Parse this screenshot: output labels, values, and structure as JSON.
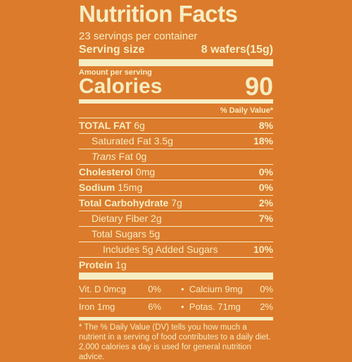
{
  "title": "Nutrition Facts",
  "servings": "23 servings per container",
  "serving_size": {
    "label": "Serving size",
    "value": "8 wafers(15g)"
  },
  "amount_per_serving": "Amount per serving",
  "calories": {
    "label": "Calories",
    "value": 90
  },
  "dv_header": "% Daily Value*",
  "nutrients": [
    {
      "name": "TOTAL FAT",
      "amount": "6g",
      "dv": "8%"
    },
    {
      "name": "Saturated Fat",
      "amount": "3.5g",
      "dv": "18%"
    },
    {
      "prefix": "Trans",
      "name": "Fat",
      "amount": "0g"
    },
    {
      "name": "Cholesterol",
      "amount": "0mg",
      "dv": "0%"
    },
    {
      "name": "Sodium",
      "amount": "15mg",
      "dv": "0%"
    },
    {
      "name": "Total Carbohydrate",
      "amount": "7g",
      "dv": "2%"
    },
    {
      "name": "Dietary Fiber",
      "amount": "2g",
      "dv": "7%"
    },
    {
      "name": "Total Sugars",
      "amount": "5g"
    },
    {
      "name": "Includes 5g Added Sugars",
      "dv": "10%"
    },
    {
      "name": "Protein",
      "amount": "1g"
    }
  ],
  "vitamins": [
    {
      "name": "Vit. D 0mcg",
      "dv": "0%"
    },
    {
      "name": "Calcium 9mg",
      "dv": "0%"
    },
    {
      "name": "Iron 1mg",
      "dv": "6%"
    },
    {
      "name": "Potas. 71mg",
      "dv": "2%"
    }
  ],
  "footnote": "* The % Daily Value (DV) tells you how much a nutrient in a serving of food contributes to a daily diet. 2,000 calories a day is used for general nutrition advice."
}
